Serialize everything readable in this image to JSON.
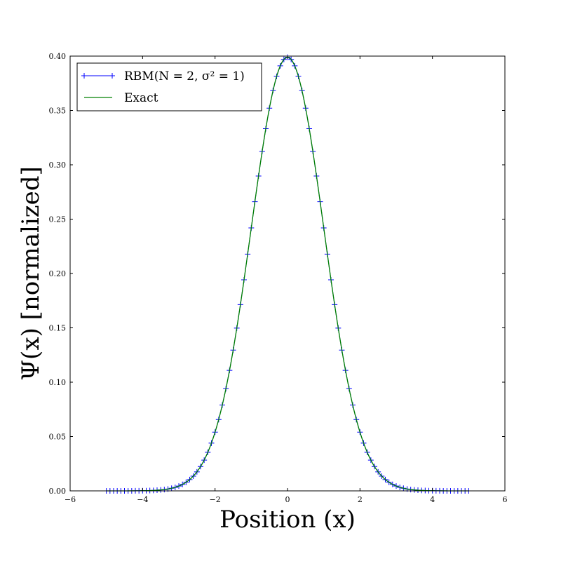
{
  "chart_data": {
    "type": "line",
    "xlabel": "Position (x)",
    "ylabel": "Ψ(x) [normalized]",
    "xlim": [
      -6,
      6
    ],
    "ylim": [
      0.0,
      0.4
    ],
    "x_ticks": [
      -6,
      -4,
      -2,
      0,
      2,
      4,
      6
    ],
    "x_tick_labels": [
      "−6",
      "−4",
      "−2",
      "0",
      "2",
      "4",
      "6"
    ],
    "y_ticks": [
      0.0,
      0.05,
      0.1,
      0.15,
      0.2,
      0.25,
      0.3,
      0.35,
      0.4
    ],
    "y_tick_labels": [
      "0.00",
      "0.05",
      "0.10",
      "0.15",
      "0.20",
      "0.25",
      "0.30",
      "0.35",
      "0.40"
    ],
    "grid": false,
    "legend_position": "top-left",
    "series": [
      {
        "name": "RBM(N = 2, σ² = 1)",
        "color": "#0000ff",
        "marker": "+",
        "x_range": [
          -5,
          5
        ],
        "num_points": 101,
        "function": "exp(-x^2/2)/sqrt(2*pi)"
      },
      {
        "name": "Exact",
        "color": "#008000",
        "marker": "none",
        "x_range": [
          -5,
          5
        ],
        "num_points": 401,
        "function": "exp(-x^2/2)/sqrt(2*pi)"
      }
    ]
  }
}
